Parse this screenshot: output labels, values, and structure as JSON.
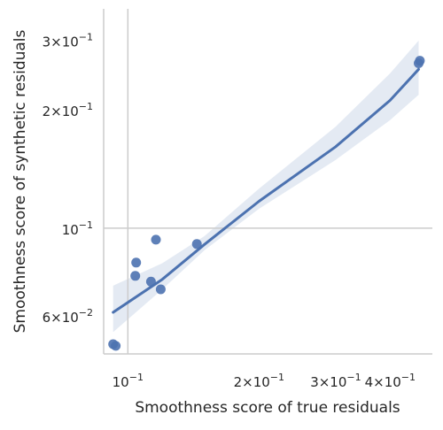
{
  "chart_data": {
    "type": "scatter",
    "title": "",
    "xlabel": "Smoothness score of true residuals",
    "ylabel": "Smoothness score of synthetic residuals",
    "xscale": "log",
    "yscale": "log",
    "xlim": [
      0.088,
      0.5
    ],
    "ylim": [
      0.048,
      0.36
    ],
    "grid": false,
    "legend": "none",
    "x_ticks": [
      {
        "value": 0.1,
        "label": "10^-1"
      },
      {
        "value": 0.2,
        "label": "2×10^-1"
      },
      {
        "value": 0.3,
        "label": "3×10^-1"
      },
      {
        "value": 0.4,
        "label": "4×10^-1"
      }
    ],
    "y_ticks": [
      {
        "value": 0.06,
        "label": "6×10^-2"
      },
      {
        "value": 0.1,
        "label": "10^-1"
      },
      {
        "value": 0.2,
        "label": "2×10^-1"
      },
      {
        "value": 0.3,
        "label": "3×10^-1"
      }
    ],
    "reference_lines": {
      "x": 0.1,
      "y": 0.1
    },
    "colors": {
      "points": "#4c72b0",
      "line": "#4c72b0",
      "band": "#4c72b0",
      "ref": "#cccccc",
      "axis": "#cccccc"
    },
    "points": [
      {
        "x": 0.0925,
        "y": 0.0508
      },
      {
        "x": 0.0938,
        "y": 0.0503
      },
      {
        "x": 0.104,
        "y": 0.0757
      },
      {
        "x": 0.1045,
        "y": 0.0818
      },
      {
        "x": 0.113,
        "y": 0.0732
      },
      {
        "x": 0.116,
        "y": 0.0935
      },
      {
        "x": 0.119,
        "y": 0.07
      },
      {
        "x": 0.144,
        "y": 0.0912
      },
      {
        "x": 0.465,
        "y": 0.262
      },
      {
        "x": 0.468,
        "y": 0.266
      }
    ],
    "fit_line": [
      {
        "x": 0.0925,
        "y": 0.0612
      },
      {
        "x": 0.12,
        "y": 0.0742
      },
      {
        "x": 0.15,
        "y": 0.091
      },
      {
        "x": 0.2,
        "y": 0.117
      },
      {
        "x": 0.3,
        "y": 0.161
      },
      {
        "x": 0.4,
        "y": 0.211
      },
      {
        "x": 0.465,
        "y": 0.253
      }
    ],
    "ci_band": [
      {
        "x": 0.0925,
        "lower": 0.0545,
        "upper": 0.0715
      },
      {
        "x": 0.12,
        "lower": 0.07,
        "upper": 0.0815
      },
      {
        "x": 0.15,
        "lower": 0.088,
        "upper": 0.0955
      },
      {
        "x": 0.2,
        "lower": 0.112,
        "upper": 0.126
      },
      {
        "x": 0.3,
        "lower": 0.149,
        "upper": 0.181
      },
      {
        "x": 0.4,
        "lower": 0.188,
        "upper": 0.247
      },
      {
        "x": 0.465,
        "lower": 0.218,
        "upper": 0.299
      }
    ]
  }
}
